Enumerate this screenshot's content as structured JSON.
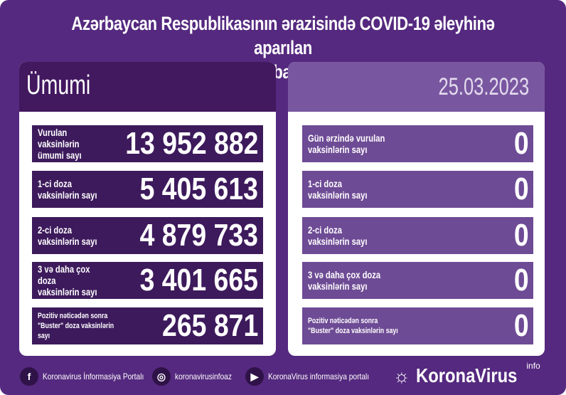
{
  "title": {
    "line1": "Azərbaycan Respublikasının ərazisində COVID-19 əleyhinə aparılan",
    "line2": "vaksinasiya ilə bağlı son vəziyyət"
  },
  "left": {
    "header": "Ümumi",
    "rows": [
      {
        "label": "Vurulan vaksinlərin\nümumi sayı",
        "value": "13 952 882"
      },
      {
        "label": "1-ci doza\nvaksinlərin sayı",
        "value": "5 405 613"
      },
      {
        "label": "2-ci doza\nvaksinlərin sayı",
        "value": "4 879 733"
      },
      {
        "label": "3 və daha çox doza\nvaksinlərin sayı",
        "value": "3 401 665"
      },
      {
        "label": "Pozitiv nəticədən sonra\n\"Buster\" doza vaksinlərin sayı",
        "value": "265 871"
      }
    ]
  },
  "right": {
    "header": "25.03.2023",
    "rows": [
      {
        "label": "Gün ərzində vurulan\nvaksinlərin sayı",
        "value": "0"
      },
      {
        "label": "1-ci doza\nvaksinlərin sayı",
        "value": "0"
      },
      {
        "label": "2-ci doza\nvaksinlərin sayı",
        "value": "0"
      },
      {
        "label": "3 və daha çox doza\nvaksinlərin sayı",
        "value": "0"
      },
      {
        "label": "Pozitiv nəticədən sonra\n\"Buster\" doza vaksinlərin sayı",
        "value": "0"
      }
    ]
  },
  "footer": {
    "facebook": "Koronavirus İnformasiya Portalı",
    "instagram": "koronavirusinfoaz",
    "youtube": "KoronaVirus informasiya portalı",
    "logo": "KoronaVirus",
    "logo_sup": "info"
  },
  "colors": {
    "background": "#55297f",
    "left_row": "#3d1a5c",
    "right_row": "#6e4b95"
  }
}
